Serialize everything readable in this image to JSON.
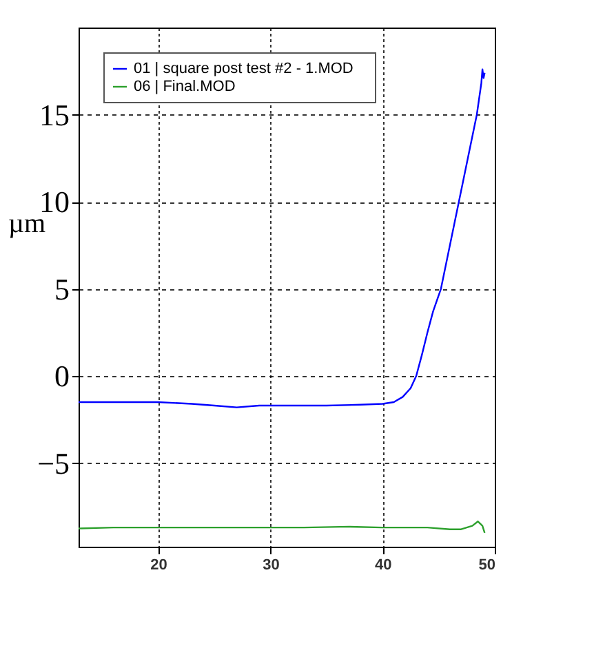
{
  "chart_data": {
    "type": "line",
    "ylabel": "µm",
    "xlim": [
      12.9,
      50
    ],
    "ylim": [
      -9.8,
      20
    ],
    "xticks": [
      20,
      30,
      40,
      50
    ],
    "yticks": [
      -5,
      0,
      5,
      10,
      15
    ],
    "grid": true,
    "legend": "top left",
    "marker": "none",
    "line_style": "solid",
    "series": [
      {
        "name": "01  |  square post test #2  - 1.MOD",
        "color": "#0000ff",
        "x": [
          12.9,
          16,
          20,
          23,
          25,
          27,
          29,
          32,
          35,
          38,
          40,
          41,
          41.8,
          42.5,
          43,
          43.5,
          44,
          44.5,
          45.2,
          46,
          46.8,
          47.6,
          48.4,
          48.8,
          48.9,
          49.0,
          49.1
        ],
        "values": [
          -1.5,
          -1.5,
          -1.5,
          -1.6,
          -1.7,
          -1.8,
          -1.7,
          -1.7,
          -1.7,
          -1.65,
          -1.6,
          -1.5,
          -1.2,
          -0.7,
          0,
          1.2,
          2.5,
          3.7,
          5,
          7.5,
          10,
          12.5,
          15,
          16.8,
          17.6,
          17.1,
          17.4
        ]
      },
      {
        "name": "06  |  Final.MOD",
        "color": "#2ca02c",
        "x": [
          12.9,
          16,
          20,
          25,
          30,
          33,
          37,
          40,
          44,
          46,
          47,
          48,
          48.5,
          48.9,
          49.1
        ],
        "values": [
          -8.75,
          -8.7,
          -8.7,
          -8.7,
          -8.7,
          -8.7,
          -8.65,
          -8.7,
          -8.7,
          -8.8,
          -8.8,
          -8.6,
          -8.35,
          -8.6,
          -9.0
        ]
      }
    ]
  }
}
